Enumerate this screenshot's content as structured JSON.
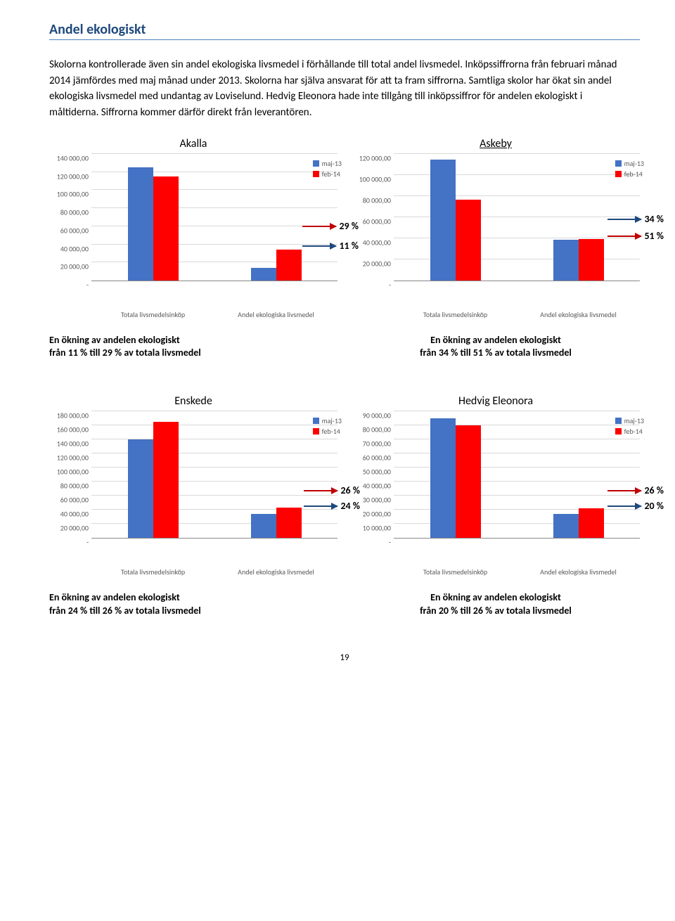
{
  "section_title": "Andel ekologiskt",
  "body_text": "Skolorna kontrollerade även sin andel ekologiska livsmedel i förhållande till total andel livsmedel. Inköpssiffrorna från februari månad 2014 jämfördes med maj månad under 2013. Skolorna har själva ansvarat för att ta fram siffrorna. Samtliga skolor har ökat sin andel ekologiska livsmedel med undantag av Loviselund. Hedvig Eleonora hade inte tillgång till inköpssiffror för andelen ekologiskt i måltiderna. Siffrorna kommer därför direkt från leverantören.",
  "legend_labels": {
    "s1": "maj-13",
    "s2": "feb-14"
  },
  "colors": {
    "series1": "#4472c4",
    "series2": "#ff0000",
    "grid": "#d9d9d9",
    "axis_text": "#595959",
    "title_blue": "#1f497d",
    "arrow_red": "#c00000",
    "arrow_blue": "#1f497d"
  },
  "x_categories": [
    "Totala livsmedelsinköp",
    "Andel ekologiska livsmedel"
  ],
  "charts": {
    "akalla": {
      "title": "Akalla",
      "ymax": 140000,
      "ystep": 20000,
      "yticks": [
        "-",
        "20 000,00",
        "40 000,00",
        "60 000,00",
        "80 000,00",
        "100 000,00",
        "120 000,00",
        "140 000,00"
      ],
      "g1": {
        "v1": 125000,
        "v2": 115000
      },
      "g2": {
        "v1": 14000,
        "v2": 34000
      },
      "annot_top": "29 %",
      "annot_bottom": "11 %",
      "caption_l1": "En ökning av andelen ekologiskt",
      "caption_l2": "från 11 % till  29 % av totala livsmedel"
    },
    "askeby": {
      "title": "Askeby",
      "ymax": 120000,
      "ystep": 20000,
      "yticks": [
        "-",
        "20 000,00",
        "40 000,00",
        "60 000,00",
        "80 000,00",
        "100 000,00",
        "120 000,00"
      ],
      "g1": {
        "v1": 115000,
        "v2": 77000
      },
      "g2": {
        "v1": 39000,
        "v2": 39500
      },
      "annot_top": "34 %",
      "annot_bottom": "51 %",
      "caption_l1": "En ökning av andelen ekologiskt",
      "caption_l2": "från 34 % till 51 % av totala livsmedel"
    },
    "enskede": {
      "title": "Enskede",
      "ymax": 180000,
      "ystep": 20000,
      "yticks": [
        "-",
        "20 000,00",
        "40 000,00",
        "60 000,00",
        "80 000,00",
        "100 000,00",
        "120 000,00",
        "140 000,00",
        "160 000,00",
        "180 000,00"
      ],
      "g1": {
        "v1": 140000,
        "v2": 165000
      },
      "g2": {
        "v1": 34000,
        "v2": 43000
      },
      "annot_top": "26 %",
      "annot_bottom": "24 %",
      "caption_l1": "En ökning av andelen ekologiskt",
      "caption_l2": "från 24 % till  26 % av totala livsmedel"
    },
    "hedvig": {
      "title": "Hedvig Eleonora",
      "ymax": 90000,
      "ystep": 10000,
      "yticks": [
        "-",
        "10 000,00",
        "20 000,00",
        "30 000,00",
        "40 000,00",
        "50 000,00",
        "60 000,00",
        "70 000,00",
        "80 000,00",
        "90 000,00"
      ],
      "g1": {
        "v1": 85000,
        "v2": 80000
      },
      "g2": {
        "v1": 17000,
        "v2": 21000
      },
      "annot_top": "26 %",
      "annot_bottom": "20 %",
      "caption_l1": "En ökning av andelen ekologiskt",
      "caption_l2": "från 20 % till 26 % av totala livsmedel"
    }
  },
  "page_number": "19"
}
